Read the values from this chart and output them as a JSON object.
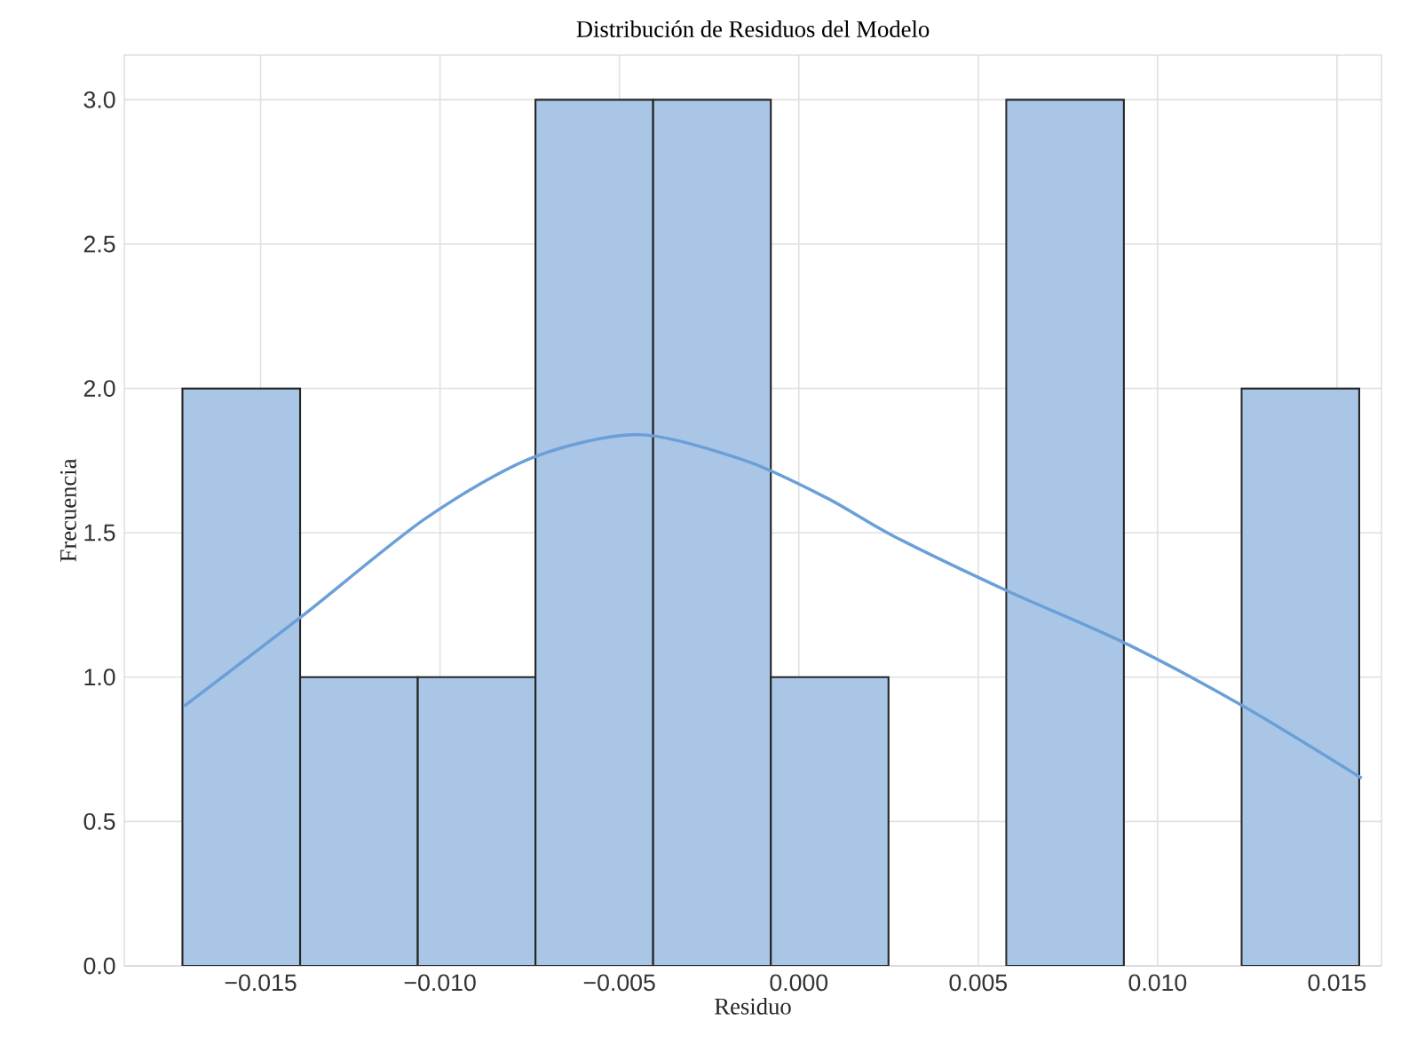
{
  "chart_data": {
    "type": "histogram",
    "title": "Distribución de Residuos del Modelo",
    "xlabel": "Residuo",
    "ylabel": "Frecuencia",
    "bins": [
      -0.01718,
      -0.0139,
      -0.01062,
      -0.00734,
      -0.00406,
      -0.00078,
      0.0025,
      0.00578,
      0.00906,
      0.01234,
      0.01562
    ],
    "values": [
      2,
      1,
      1,
      3,
      3,
      1,
      0,
      3,
      0,
      2
    ],
    "color": "#a9c6e6",
    "series": [
      {
        "type": "line",
        "color": "#6a9fd8",
        "x": [
          -0.01713,
          -0.01386,
          -0.0104,
          -0.00743,
          -0.00446,
          -0.00149,
          0.00079,
          0.00262,
          0.00579,
          0.00906,
          0.01238,
          0.01569
        ],
        "values": [
          0.9,
          1.21,
          1.55,
          1.76,
          1.84,
          1.75,
          1.62,
          1.49,
          1.3,
          1.12,
          0.9,
          0.65
        ]
      }
    ],
    "xlim": [
      -0.0188,
      0.01624
    ],
    "ylim": [
      0,
      3.155
    ],
    "xticks": [
      {
        "value": -0.015,
        "label": "−0.015"
      },
      {
        "value": -0.01,
        "label": "−0.010"
      },
      {
        "value": -0.005,
        "label": "−0.005"
      },
      {
        "value": 0,
        "label": "0.000"
      },
      {
        "value": 0.005,
        "label": "0.005"
      },
      {
        "value": 0.01,
        "label": "0.010"
      },
      {
        "value": 0.015,
        "label": "0.015"
      }
    ],
    "yticks": [
      {
        "value": 0,
        "label": "0.0"
      },
      {
        "value": 0.5,
        "label": "0.5"
      },
      {
        "value": 1,
        "label": "1.0"
      },
      {
        "value": 1.5,
        "label": "1.5"
      },
      {
        "value": 2,
        "label": "2.0"
      },
      {
        "value": 2.5,
        "label": "2.5"
      },
      {
        "value": 3,
        "label": "3.0"
      }
    ],
    "grid": true
  }
}
